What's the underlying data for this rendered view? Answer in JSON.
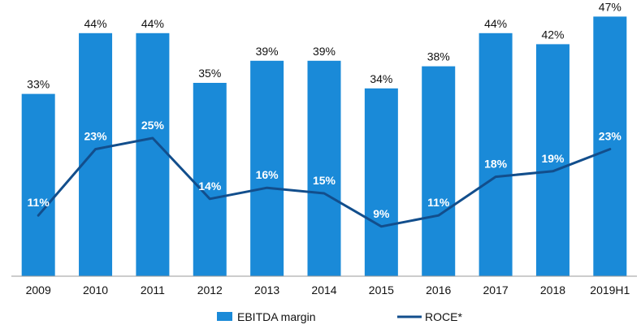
{
  "chart_data": {
    "type": "bar",
    "categories": [
      "2009",
      "2010",
      "2011",
      "2012",
      "2013",
      "2014",
      "2015",
      "2016",
      "2017",
      "2018",
      "2019H1"
    ],
    "series": [
      {
        "name": "EBITDA margin",
        "type": "bar",
        "values": [
          33,
          44,
          44,
          35,
          39,
          39,
          34,
          38,
          44,
          42,
          47
        ],
        "labels": [
          "33%",
          "44%",
          "44%",
          "35%",
          "39%",
          "39%",
          "34%",
          "38%",
          "44%",
          "42%",
          "47%"
        ],
        "color": "#1a8ad8"
      },
      {
        "name": "ROCE*",
        "type": "line",
        "values": [
          11,
          23,
          25,
          14,
          16,
          15,
          9,
          11,
          18,
          19,
          23
        ],
        "labels": [
          "11%",
          "23%",
          "25%",
          "14%",
          "16%",
          "15%",
          "9%",
          "11%",
          "18%",
          "19%",
          "23%"
        ],
        "color": "#124e8c"
      }
    ],
    "ylim": [
      0,
      50
    ],
    "grid": false,
    "legend_position": "bottom",
    "title": "",
    "xlabel": "",
    "ylabel": ""
  }
}
